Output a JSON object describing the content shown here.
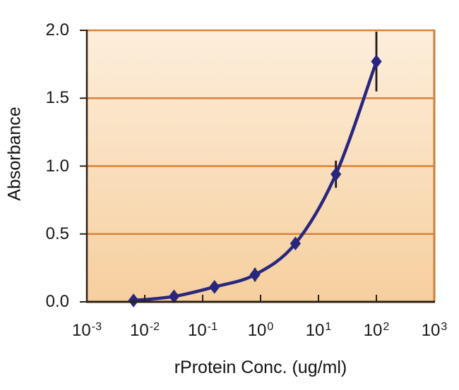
{
  "chart_data": {
    "type": "line",
    "subtype": "scatter-line with error bars",
    "title": "",
    "xlabel": "rProtein Conc. (ug/ml)",
    "ylabel": "Absorbance",
    "xscale": "log",
    "xlim_exp": [
      -3,
      3
    ],
    "ylim": [
      0,
      2
    ],
    "x": [
      0.0064,
      0.032,
      0.16,
      0.8,
      4,
      20,
      100
    ],
    "y": [
      0.01,
      0.04,
      0.11,
      0.2,
      0.43,
      0.94,
      1.77
    ],
    "yerr": [
      0,
      0,
      0.02,
      0.05,
      0.03,
      0.1,
      0.22
    ],
    "x_ticks": [
      {
        "base": "10",
        "exp": "-3"
      },
      {
        "base": "10",
        "exp": "-2"
      },
      {
        "base": "10",
        "exp": "-1"
      },
      {
        "base": "10",
        "exp": "0"
      },
      {
        "base": "10",
        "exp": "1"
      },
      {
        "base": "10",
        "exp": "2"
      },
      {
        "base": "10",
        "exp": "3"
      }
    ],
    "y_ticks": [
      2.0,
      1.5,
      1.0,
      0.5,
      0.0
    ],
    "grid_y": [
      0.5,
      1.0,
      1.5
    ],
    "grid": "horizontal",
    "legend": "none",
    "marker": "diamond",
    "colors": {
      "curve": "#28267e",
      "marker": "#28267e",
      "error_bar": "#1a1a1a",
      "grid": "#dc8135",
      "axis": "#2b2017",
      "frame_right": "#c9803d",
      "plot_bg_top": "#fdeedb",
      "plot_bg_bottom": "#f6cf9e",
      "text": "#111111"
    }
  }
}
